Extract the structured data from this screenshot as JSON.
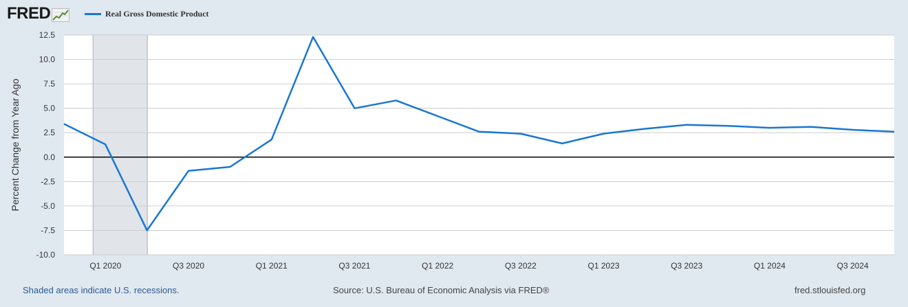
{
  "brand": {
    "logo_text": "FRED",
    "logo_icon": "chart-line-icon"
  },
  "legend": {
    "label": "Real Gross Domestic Product",
    "color": "#1976d2"
  },
  "chart_data": {
    "type": "line",
    "ylabel": "Percent Change from Year Ago",
    "xlabel": "",
    "ylim": [
      -10.0,
      12.5
    ],
    "yticks": [
      "12.5",
      "10.0",
      "7.5",
      "5.0",
      "2.5",
      "0.0",
      "-2.5",
      "-5.0",
      "-7.5",
      "-10.0"
    ],
    "xticks": [
      "Q1 2020",
      "Q3 2020",
      "Q1 2021",
      "Q3 2021",
      "Q1 2022",
      "Q3 2022",
      "Q1 2023",
      "Q3 2023",
      "Q1 2024",
      "Q3 2024"
    ],
    "x": [
      "Q4 2019",
      "Q1 2020",
      "Q2 2020",
      "Q3 2020",
      "Q4 2020",
      "Q1 2021",
      "Q2 2021",
      "Q3 2021",
      "Q4 2021",
      "Q1 2022",
      "Q2 2022",
      "Q3 2022",
      "Q4 2022",
      "Q1 2023",
      "Q2 2023",
      "Q3 2023",
      "Q4 2023",
      "Q1 2024",
      "Q2 2024",
      "Q3 2024",
      "Q4 2024"
    ],
    "series": [
      {
        "name": "Real Gross Domestic Product",
        "values": [
          3.4,
          1.3,
          -7.5,
          -1.4,
          -1.0,
          1.8,
          12.3,
          5.0,
          5.8,
          4.2,
          2.6,
          2.4,
          1.4,
          2.4,
          2.9,
          3.3,
          3.2,
          3.0,
          3.1,
          2.8,
          2.6
        ]
      }
    ],
    "recession": {
      "start": "Q1 2020",
      "end": "Q2 2020"
    },
    "grid": true
  },
  "footer": {
    "note": "Shaded areas indicate U.S. recessions.",
    "source": "Source: U.S. Bureau of Economic Analysis via FRED®",
    "site": "fred.stlouisfed.org"
  }
}
